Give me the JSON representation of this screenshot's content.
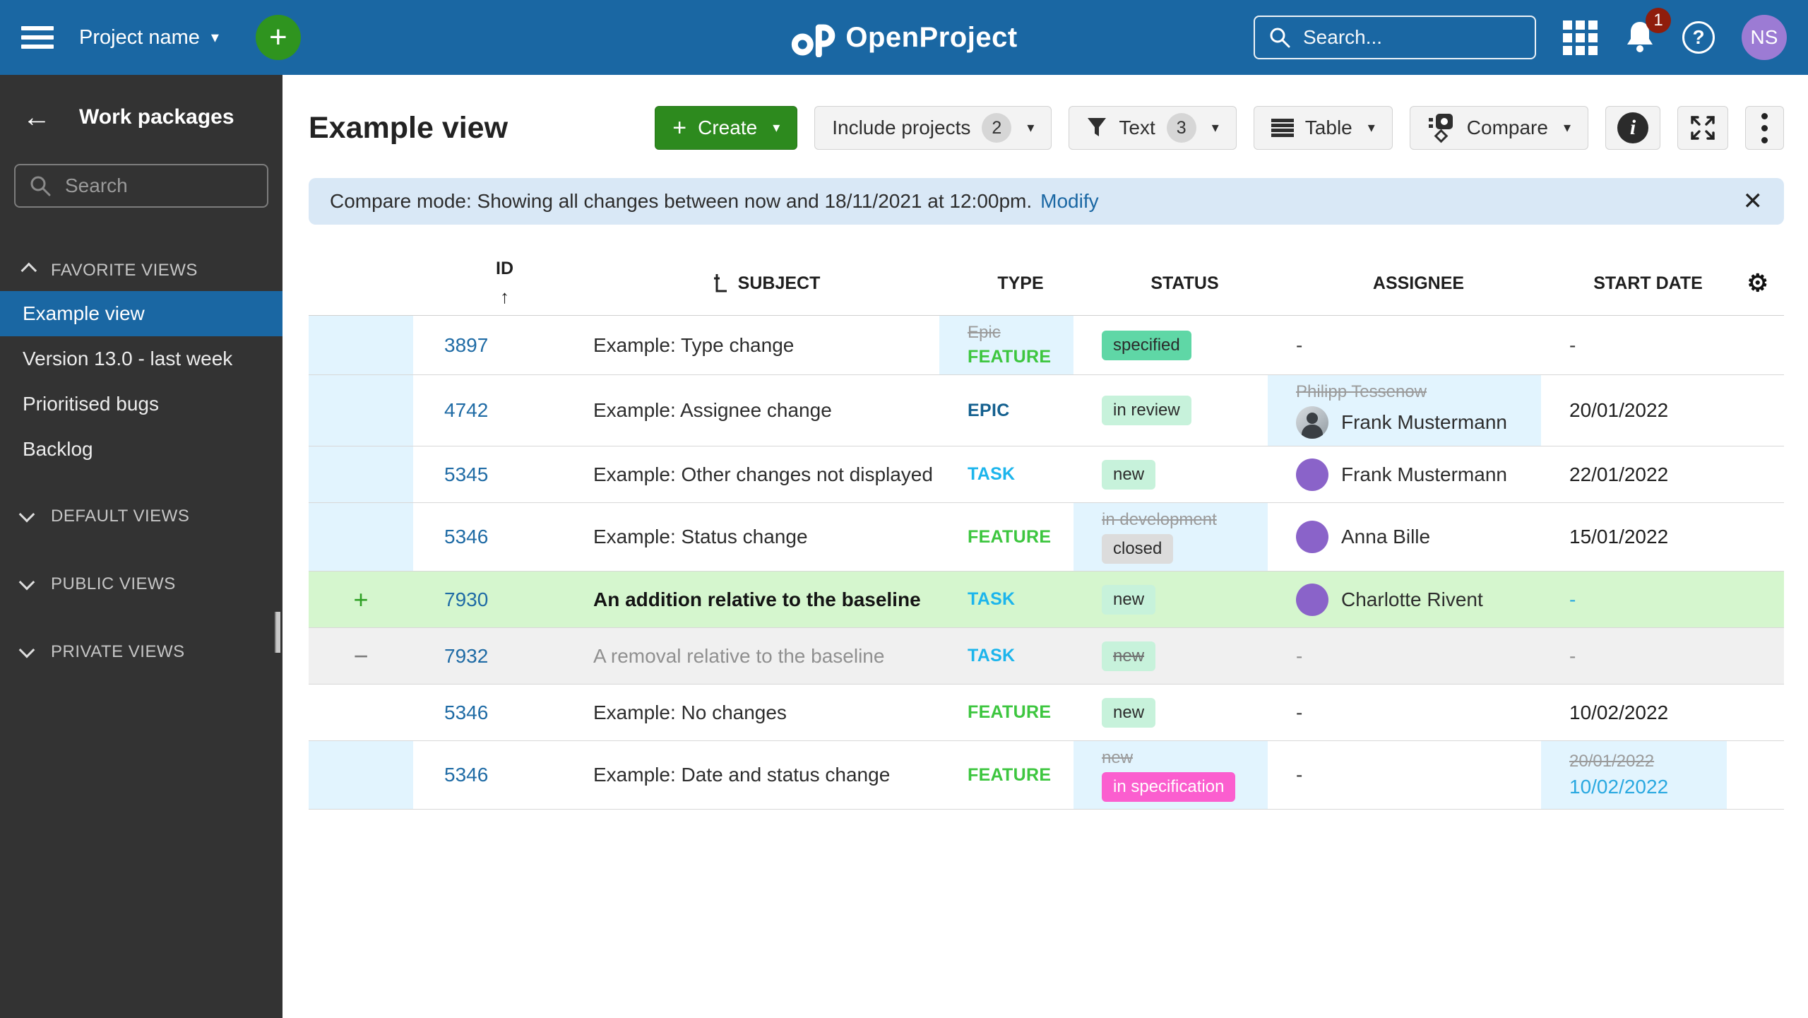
{
  "topbar": {
    "project_name": "Project name",
    "logo_text": "OpenProject",
    "search_placeholder": "Search...",
    "notification_count": "1",
    "avatar_initials": "NS"
  },
  "sidebar": {
    "title": "Work packages",
    "search_placeholder": "Search",
    "favorite_section_label": "FAVORITE VIEWS",
    "favorite_items": [
      "Example view",
      "Version 13.0 - last week",
      "Prioritised bugs",
      "Backlog"
    ],
    "selected_item": "Example view",
    "collapsed_sections": [
      "DEFAULT VIEWS",
      "PUBLIC VIEWS",
      "PRIVATE VIEWS"
    ]
  },
  "toolbar": {
    "page_title": "Example view",
    "create_label": "Create",
    "include_projects_label": "Include projects",
    "include_projects_count": "2",
    "filter_label": "Text",
    "filter_count": "3",
    "table_label": "Table",
    "compare_label": "Compare"
  },
  "banner": {
    "text": "Compare mode: Showing all changes between now and 18/11/2021 at 12:00pm.",
    "link_label": "Modify"
  },
  "table": {
    "headers": {
      "id": "ID",
      "subject": "SUBJECT",
      "type": "TYPE",
      "status": "STATUS",
      "assignee": "ASSIGNEE",
      "start_date": "START DATE"
    },
    "type_colors": {
      "FEATURE": "#3DC63F",
      "TASK": "#1CB5EC",
      "EPIC": "#14608F",
      "Epic": "#9b9b9b"
    },
    "rows": [
      {
        "id": "3897",
        "change": "modified",
        "subject": "Example: Type change",
        "subject_variant": "normal",
        "type": {
          "old": "Epic",
          "value": "FEATURE",
          "changed": true
        },
        "status": {
          "value": "specified",
          "variant": "solid"
        },
        "assignee": {
          "variant": "dash"
        },
        "start_date": {
          "value": "-",
          "variant": "dash"
        }
      },
      {
        "id": "4742",
        "change": "modified",
        "subject": "Example: Assignee change",
        "subject_variant": "normal",
        "type": {
          "value": "EPIC"
        },
        "status": {
          "value": "in review",
          "variant": "light"
        },
        "assignee": {
          "variant": "photo",
          "old": "Philipp Tessenow",
          "name": "Frank Mustermann",
          "changed": true
        },
        "start_date": {
          "value": "20/01/2022"
        }
      },
      {
        "id": "5345",
        "change": "modified",
        "subject": "Example: Other changes not displayed",
        "subject_variant": "normal",
        "type": {
          "value": "TASK"
        },
        "status": {
          "value": "new",
          "variant": "light"
        },
        "assignee": {
          "variant": "avatar",
          "name": "Frank Mustermann"
        },
        "start_date": {
          "value": "22/01/2022"
        }
      },
      {
        "id": "5346",
        "change": "modified",
        "subject": "Example: Status change",
        "subject_variant": "normal",
        "type": {
          "value": "FEATURE"
        },
        "status": {
          "old": "in development",
          "value": "closed",
          "variant": "grey",
          "changed": true
        },
        "assignee": {
          "variant": "avatar",
          "name": "Anna Bille"
        },
        "start_date": {
          "value": "15/01/2022"
        }
      },
      {
        "id": "7930",
        "change": "added",
        "subject": "An addition relative to the baseline",
        "subject_variant": "bold",
        "type": {
          "value": "TASK"
        },
        "status": {
          "value": "new",
          "variant": "light"
        },
        "assignee": {
          "variant": "avatar",
          "name": "Charlotte Rivent"
        },
        "start_date": {
          "value": "-",
          "variant": "cyan-dash"
        }
      },
      {
        "id": "7932",
        "change": "removed",
        "subject": "A removal relative to the baseline",
        "subject_variant": "muted",
        "type": {
          "value": "TASK"
        },
        "status": {
          "value": "new",
          "variant": "light",
          "struck": true
        },
        "assignee": {
          "variant": "dash",
          "dash_variant": "grey"
        },
        "start_date": {
          "value": "-",
          "variant": "grey-dash"
        }
      },
      {
        "id": "5346",
        "change": "none",
        "subject": "Example: No changes",
        "subject_variant": "normal",
        "type": {
          "value": "FEATURE"
        },
        "status": {
          "value": "new",
          "variant": "light"
        },
        "assignee": {
          "variant": "dash"
        },
        "start_date": {
          "value": "10/02/2022"
        }
      },
      {
        "id": "5346",
        "change": "modified",
        "subject": "Example: Date and status change",
        "subject_variant": "normal",
        "type": {
          "value": "FEATURE"
        },
        "status": {
          "old": "new",
          "value": "in specification",
          "variant": "pink",
          "changed": true
        },
        "assignee": {
          "variant": "dash"
        },
        "start_date": {
          "old": "20/01/2022",
          "value": "10/02/2022",
          "variant": "new",
          "changed": true
        }
      }
    ]
  },
  "colors": {
    "topbar": "#1A67A3",
    "sidebar": "#333333",
    "selected_nav": "#1A67A3",
    "create_green": "#2D8A1E",
    "banner_blue": "#D9E8F6",
    "changed_cell": "#E2F4FE",
    "added_row": "#D5F6CE",
    "removed_row": "#F0F0F0",
    "badge_solid": "#5FD7A6",
    "badge_light": "#C7F2DB",
    "badge_grey": "#DCDCDC",
    "badge_pink": "#FB5ECF",
    "new_value_cyan": "#29A8E0",
    "avatar_purple": "#8A63C9",
    "notification_badge": "#8F1D0C",
    "avatar_top_purple": "#9C7BD4"
  }
}
